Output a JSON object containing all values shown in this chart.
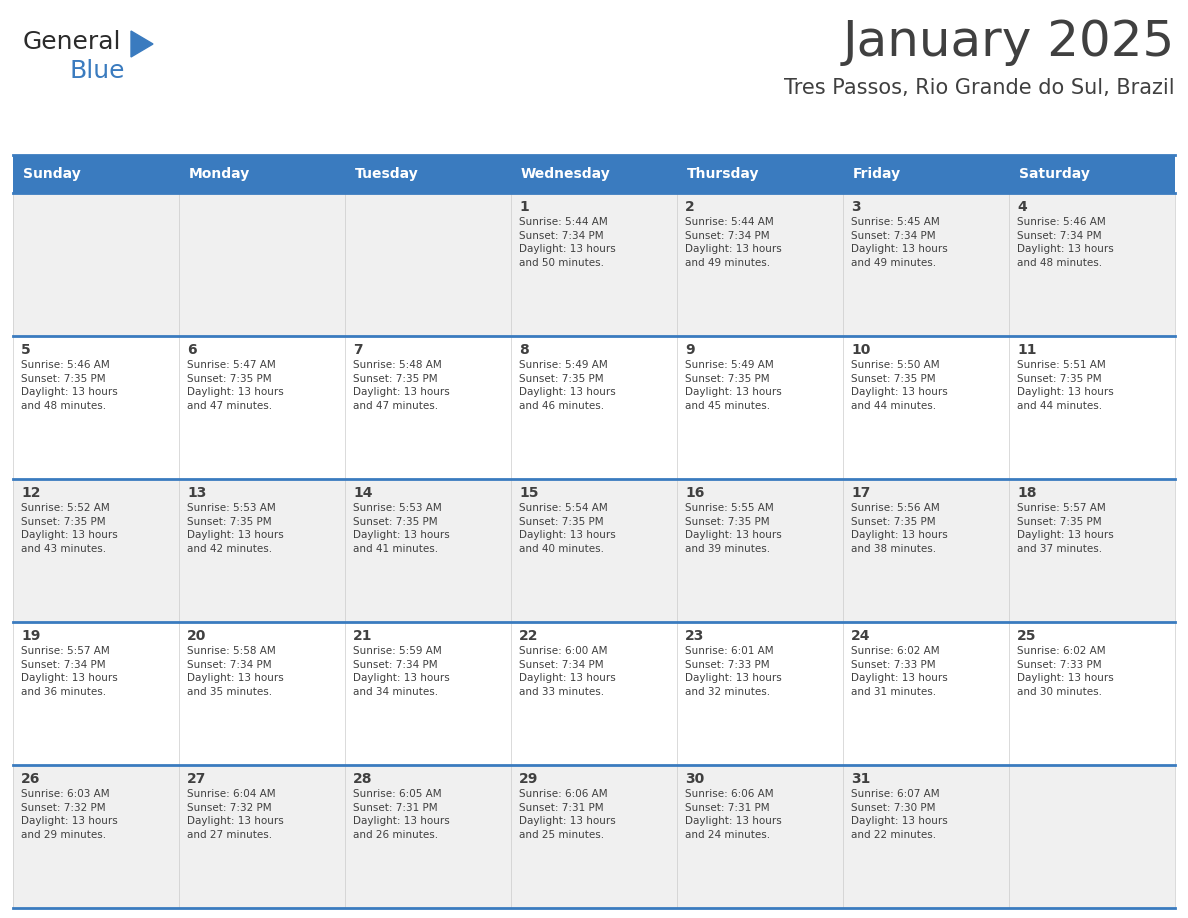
{
  "title": "January 2025",
  "subtitle": "Tres Passos, Rio Grande do Sul, Brazil",
  "header_bg_color": "#3a7bbf",
  "header_text_color": "#ffffff",
  "cell_bg_color_even": "#f0f0f0",
  "cell_bg_color_odd": "#ffffff",
  "row_line_color": "#3a7bbf",
  "text_color": "#404040",
  "days_of_week": [
    "Sunday",
    "Monday",
    "Tuesday",
    "Wednesday",
    "Thursday",
    "Friday",
    "Saturday"
  ],
  "calendar_data": [
    [
      "",
      "",
      "",
      "1\nSunrise: 5:44 AM\nSunset: 7:34 PM\nDaylight: 13 hours\nand 50 minutes.",
      "2\nSunrise: 5:44 AM\nSunset: 7:34 PM\nDaylight: 13 hours\nand 49 minutes.",
      "3\nSunrise: 5:45 AM\nSunset: 7:34 PM\nDaylight: 13 hours\nand 49 minutes.",
      "4\nSunrise: 5:46 AM\nSunset: 7:34 PM\nDaylight: 13 hours\nand 48 minutes."
    ],
    [
      "5\nSunrise: 5:46 AM\nSunset: 7:35 PM\nDaylight: 13 hours\nand 48 minutes.",
      "6\nSunrise: 5:47 AM\nSunset: 7:35 PM\nDaylight: 13 hours\nand 47 minutes.",
      "7\nSunrise: 5:48 AM\nSunset: 7:35 PM\nDaylight: 13 hours\nand 47 minutes.",
      "8\nSunrise: 5:49 AM\nSunset: 7:35 PM\nDaylight: 13 hours\nand 46 minutes.",
      "9\nSunrise: 5:49 AM\nSunset: 7:35 PM\nDaylight: 13 hours\nand 45 minutes.",
      "10\nSunrise: 5:50 AM\nSunset: 7:35 PM\nDaylight: 13 hours\nand 44 minutes.",
      "11\nSunrise: 5:51 AM\nSunset: 7:35 PM\nDaylight: 13 hours\nand 44 minutes."
    ],
    [
      "12\nSunrise: 5:52 AM\nSunset: 7:35 PM\nDaylight: 13 hours\nand 43 minutes.",
      "13\nSunrise: 5:53 AM\nSunset: 7:35 PM\nDaylight: 13 hours\nand 42 minutes.",
      "14\nSunrise: 5:53 AM\nSunset: 7:35 PM\nDaylight: 13 hours\nand 41 minutes.",
      "15\nSunrise: 5:54 AM\nSunset: 7:35 PM\nDaylight: 13 hours\nand 40 minutes.",
      "16\nSunrise: 5:55 AM\nSunset: 7:35 PM\nDaylight: 13 hours\nand 39 minutes.",
      "17\nSunrise: 5:56 AM\nSunset: 7:35 PM\nDaylight: 13 hours\nand 38 minutes.",
      "18\nSunrise: 5:57 AM\nSunset: 7:35 PM\nDaylight: 13 hours\nand 37 minutes."
    ],
    [
      "19\nSunrise: 5:57 AM\nSunset: 7:34 PM\nDaylight: 13 hours\nand 36 minutes.",
      "20\nSunrise: 5:58 AM\nSunset: 7:34 PM\nDaylight: 13 hours\nand 35 minutes.",
      "21\nSunrise: 5:59 AM\nSunset: 7:34 PM\nDaylight: 13 hours\nand 34 minutes.",
      "22\nSunrise: 6:00 AM\nSunset: 7:34 PM\nDaylight: 13 hours\nand 33 minutes.",
      "23\nSunrise: 6:01 AM\nSunset: 7:33 PM\nDaylight: 13 hours\nand 32 minutes.",
      "24\nSunrise: 6:02 AM\nSunset: 7:33 PM\nDaylight: 13 hours\nand 31 minutes.",
      "25\nSunrise: 6:02 AM\nSunset: 7:33 PM\nDaylight: 13 hours\nand 30 minutes."
    ],
    [
      "26\nSunrise: 6:03 AM\nSunset: 7:32 PM\nDaylight: 13 hours\nand 29 minutes.",
      "27\nSunrise: 6:04 AM\nSunset: 7:32 PM\nDaylight: 13 hours\nand 27 minutes.",
      "28\nSunrise: 6:05 AM\nSunset: 7:31 PM\nDaylight: 13 hours\nand 26 minutes.",
      "29\nSunrise: 6:06 AM\nSunset: 7:31 PM\nDaylight: 13 hours\nand 25 minutes.",
      "30\nSunrise: 6:06 AM\nSunset: 7:31 PM\nDaylight: 13 hours\nand 24 minutes.",
      "31\nSunrise: 6:07 AM\nSunset: 7:30 PM\nDaylight: 13 hours\nand 22 minutes.",
      ""
    ]
  ],
  "logo_general_color": "#2b2b2b",
  "logo_blue_color": "#3a7bbf",
  "logo_triangle_color": "#3a7bbf",
  "title_fontsize": 36,
  "subtitle_fontsize": 15,
  "header_fontsize": 10,
  "day_num_fontsize": 10,
  "cell_text_fontsize": 7.5
}
